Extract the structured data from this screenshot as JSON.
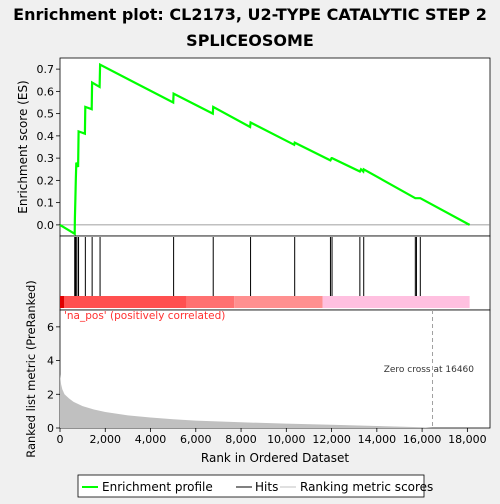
{
  "chart_data": [
    {
      "type": "line",
      "title_line1": "Enrichment plot: CL2173, U2-TYPE CATALYTIC STEP 2",
      "title_line2": "SPLICEOSOME",
      "ylabel": "Enrichment score (ES)",
      "ylim": [
        -0.05,
        0.75
      ],
      "xlim": [
        0,
        19000
      ],
      "yticks": [
        0.0,
        0.1,
        0.2,
        0.3,
        0.4,
        0.5,
        0.6,
        0.7
      ],
      "ytick_labels": [
        "0.0",
        "0.1",
        "0.2",
        "0.3",
        "0.4",
        "0.5",
        "0.6",
        "0.7"
      ],
      "grid": false,
      "series": [
        {
          "name": "Enrichment profile",
          "color": "#00ff00",
          "x": [
            0,
            650,
            660,
            680,
            700,
            720,
            800,
            820,
            1100,
            1120,
            1400,
            1420,
            1750,
            1770,
            5000,
            5020,
            6750,
            6770,
            8400,
            8420,
            10350,
            10370,
            11950,
            12000,
            12020,
            13250,
            13300,
            13400,
            13420,
            15700,
            15750,
            15900,
            15920,
            18100
          ],
          "y": [
            0.0,
            -0.04,
            0.03,
            0.12,
            0.2,
            0.28,
            0.26,
            0.42,
            0.41,
            0.53,
            0.52,
            0.64,
            0.62,
            0.72,
            0.55,
            0.59,
            0.5,
            0.53,
            0.44,
            0.46,
            0.36,
            0.37,
            0.29,
            0.3,
            0.3,
            0.24,
            0.25,
            0.24,
            0.25,
            0.12,
            0.12,
            0.12,
            0.12,
            0.0
          ]
        }
      ]
    },
    {
      "type": "hits",
      "series_name": "Hits",
      "x": [
        650,
        680,
        700,
        720,
        800,
        820,
        1120,
        1420,
        1770,
        5020,
        6770,
        8420,
        10370,
        11950,
        12020,
        13250,
        13420,
        15700,
        15750,
        15920
      ]
    },
    {
      "type": "area",
      "ylabel": "Ranked list metric (PreRanked)",
      "xlabel": "Rank in Ordered Dataset",
      "ylim": [
        0,
        7
      ],
      "xlim": [
        0,
        19000
      ],
      "yticks": [
        0,
        2,
        4,
        6
      ],
      "ytick_labels": [
        "0",
        "2",
        "4",
        "6"
      ],
      "xticks": [
        0,
        2000,
        4000,
        6000,
        8000,
        10000,
        12000,
        14000,
        16000,
        18000
      ],
      "xtick_labels": [
        "0",
        "2,000",
        "4,000",
        "6,000",
        "8,000",
        "10,000",
        "12,000",
        "14,000",
        "16,000",
        "18,000"
      ],
      "series_name": "Ranking metric scores",
      "color": "#c0c0c0",
      "x": [
        0,
        50,
        100,
        200,
        400,
        600,
        1000,
        1500,
        2000,
        3000,
        4000,
        5000,
        6000,
        8000,
        10000,
        12000,
        14000,
        16000,
        16460,
        18100
      ],
      "y": [
        3.2,
        2.6,
        2.3,
        2.0,
        1.75,
        1.55,
        1.3,
        1.1,
        0.95,
        0.75,
        0.62,
        0.52,
        0.44,
        0.34,
        0.26,
        0.19,
        0.12,
        0.05,
        0.0,
        0.0
      ],
      "annotation_pos": "'na_pos' (positively correlated)",
      "annotation_zero": "Zero cross at 16460",
      "zero_cross": 16460,
      "heat_bands": [
        {
          "from": 0,
          "to": 5600,
          "color": "#ff5050"
        },
        {
          "from": 5600,
          "to": 7700,
          "color": "#ff7070"
        },
        {
          "from": 7700,
          "to": 11600,
          "color": "#ff9090"
        },
        {
          "from": 11600,
          "to": 18100,
          "color": "#ffc0e0"
        }
      ]
    }
  ],
  "legend": {
    "items": [
      {
        "label": "Enrichment profile",
        "color": "#00ff00"
      },
      {
        "label": "Hits",
        "color": "#000000"
      },
      {
        "label": "Ranking metric scores",
        "color": "#c0c0c0"
      }
    ]
  }
}
